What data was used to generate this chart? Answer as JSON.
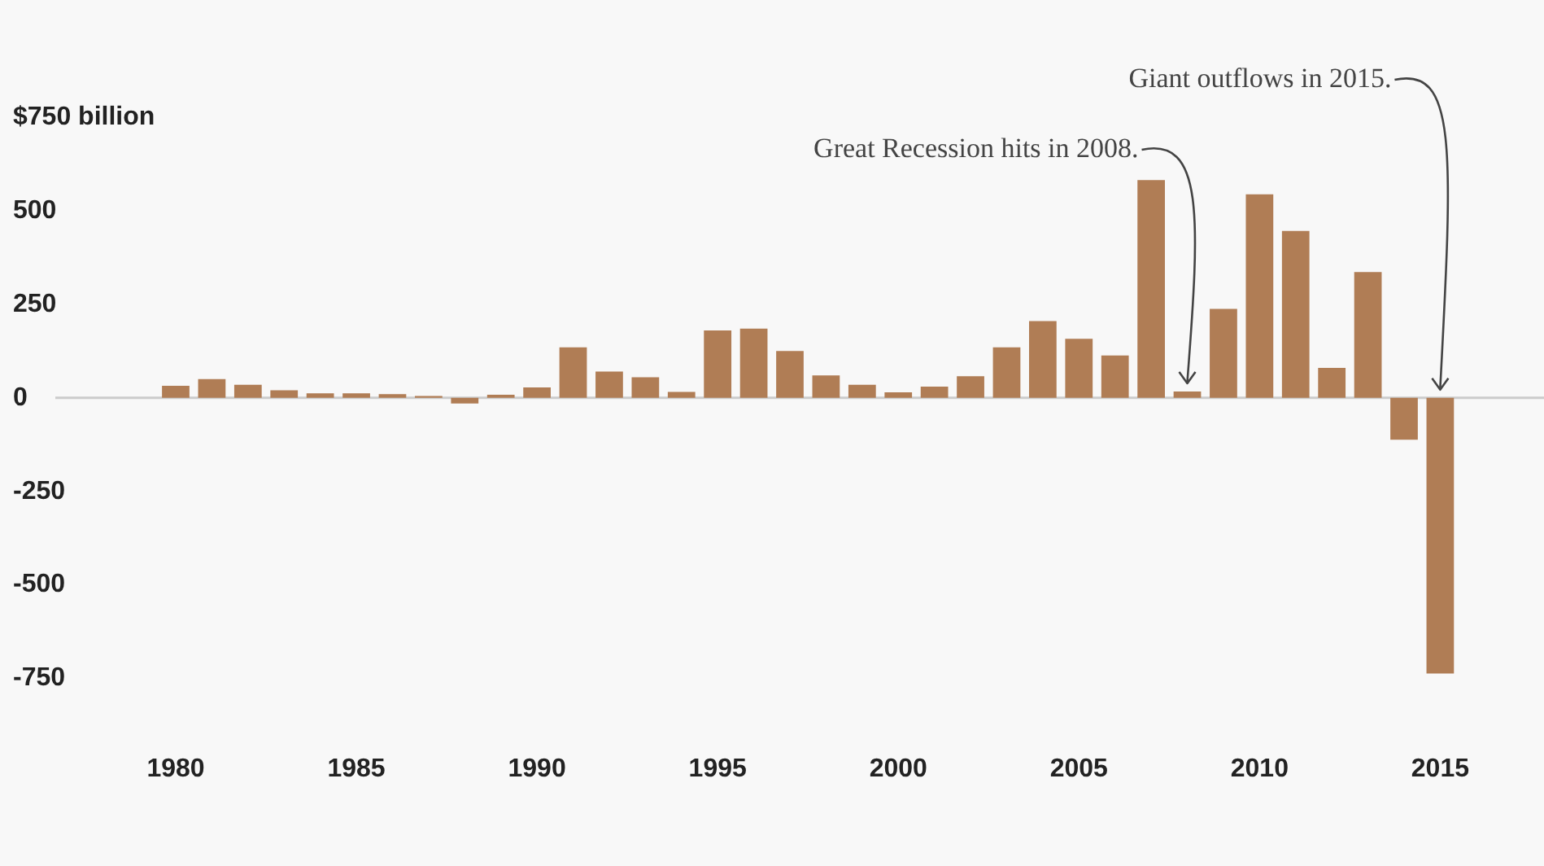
{
  "chart_data": {
    "type": "bar",
    "x": [
      1980,
      1981,
      1982,
      1983,
      1984,
      1985,
      1986,
      1987,
      1988,
      1989,
      1990,
      1991,
      1992,
      1993,
      1994,
      1995,
      1996,
      1997,
      1998,
      1999,
      2000,
      2001,
      2002,
      2003,
      2004,
      2005,
      2006,
      2007,
      2008,
      2009,
      2010,
      2011,
      2012,
      2013,
      2014,
      2015
    ],
    "values": [
      32,
      50,
      35,
      20,
      12,
      12,
      10,
      5,
      -15,
      8,
      28,
      135,
      70,
      55,
      16,
      180,
      185,
      125,
      60,
      35,
      15,
      30,
      58,
      135,
      205,
      158,
      113,
      582,
      17,
      238,
      544,
      446,
      80,
      336,
      -112,
      -737
    ],
    "color": "#b07d55",
    "xlim": [
      1980,
      2015
    ],
    "xticks": [
      1980,
      1985,
      1990,
      1995,
      2000,
      2005,
      2010,
      2015
    ],
    "ylim": [
      -750,
      750
    ],
    "yticks": [
      -750,
      -500,
      -250,
      0,
      250,
      500,
      {
        "value": 750,
        "label": "$750 billion"
      }
    ],
    "ref_lines": [
      {
        "axis": "y",
        "value": 0,
        "color": "#cccccc"
      }
    ],
    "annotations": [
      {
        "text": "Great Recession hits in 2008.",
        "x": 2008,
        "y": 17
      },
      {
        "text": "Giant outflows in 2015.",
        "x": 2015,
        "y": 0
      }
    ]
  }
}
